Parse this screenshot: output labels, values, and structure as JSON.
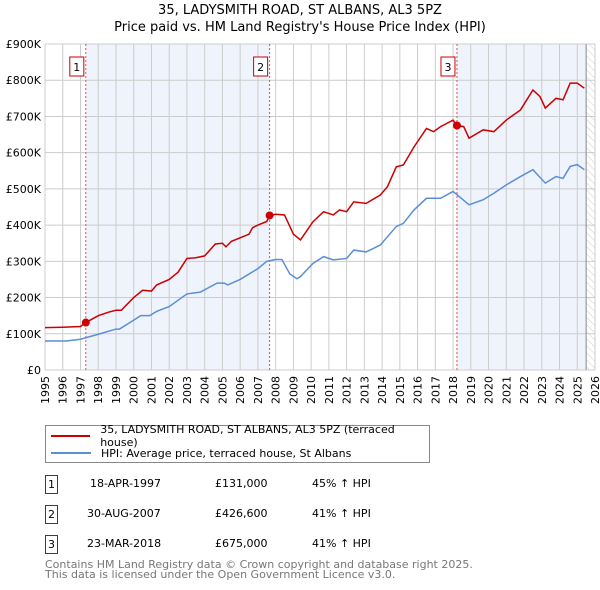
{
  "title_line1": "35, LADYSMITH ROAD, ST ALBANS, AL3 5PZ",
  "title_line2": "Price paid vs. HM Land Registry's House Price Index (HPI)",
  "colors": {
    "property": "#cc0000",
    "hpi": "#5b8fd4",
    "shade": "#eef3fc"
  },
  "chart_data": {
    "type": "line",
    "xlim": [
      1995,
      2026
    ],
    "ylim": [
      0,
      900000
    ],
    "x_ticks": [
      "1995",
      "1996",
      "1997",
      "1998",
      "1999",
      "2000",
      "2001",
      "2002",
      "2003",
      "2004",
      "2005",
      "2006",
      "2007",
      "2008",
      "2009",
      "2010",
      "2011",
      "2012",
      "2013",
      "2014",
      "2015",
      "2016",
      "2017",
      "2018",
      "2019",
      "2020",
      "2021",
      "2022",
      "2023",
      "2024",
      "2025",
      "2026"
    ],
    "y_ticks": [
      {
        "v": 0,
        "label": "£0"
      },
      {
        "v": 100000,
        "label": "£100K"
      },
      {
        "v": 200000,
        "label": "£200K"
      },
      {
        "v": 300000,
        "label": "£300K"
      },
      {
        "v": 400000,
        "label": "£400K"
      },
      {
        "v": 500000,
        "label": "£500K"
      },
      {
        "v": 600000,
        "label": "£600K"
      },
      {
        "v": 700000,
        "label": "£700K"
      },
      {
        "v": 800000,
        "label": "£800K"
      },
      {
        "v": 900000,
        "label": "£900K"
      }
    ],
    "grid": true,
    "data_end": 2025.5,
    "series": [
      {
        "name": "35, LADYSMITH ROAD, ST ALBANS, AL3 5PZ (terraced house)",
        "color": "#cc0000",
        "x": [
          1995,
          1996,
          1997,
          1997.3,
          1998,
          1998.6,
          1999,
          1999.3,
          2000,
          2000.5,
          2001,
          2001.3,
          2002,
          2002.5,
          2003,
          2003.5,
          2004,
          2004.6,
          2005,
          2005.2,
          2005.5,
          2006,
          2006.5,
          2006.7,
          2007,
          2007.5,
          2007.66,
          2008,
          2008.5,
          2009,
          2009.4,
          2010.1,
          2010.7,
          2011.25,
          2011.6,
          2012,
          2012.4,
          2013.1,
          2013.9,
          2014.3,
          2014.8,
          2015.2,
          2015.8,
          2016.5,
          2016.9,
          2017.3,
          2018,
          2018.2,
          2018.6,
          2018.9,
          2019.7,
          2020.3,
          2021,
          2021.8,
          2022.5,
          2022.9,
          2023.2,
          2023.8,
          2024.2,
          2024.6,
          2025,
          2025.4
        ],
        "y": [
          117000,
          118000,
          120000,
          131000,
          150000,
          160000,
          165000,
          165000,
          200000,
          220000,
          218000,
          235000,
          250000,
          270000,
          308000,
          310000,
          315000,
          348000,
          350000,
          340000,
          355000,
          365000,
          375000,
          393000,
          400000,
          410000,
          426600,
          430000,
          428000,
          375000,
          359000,
          409000,
          437000,
          428000,
          442000,
          437000,
          464000,
          460000,
          483000,
          506000,
          561000,
          566000,
          616000,
          667000,
          658000,
          672000,
          690000,
          675000,
          672000,
          640000,
          663000,
          658000,
          690000,
          718000,
          773000,
          755000,
          723000,
          750000,
          746000,
          792000,
          792000,
          778000
        ]
      },
      {
        "name": "HPI: Average price, terraced house, St Albans",
        "color": "#5b8fd4",
        "x": [
          1995,
          1996.2,
          1997,
          1998.1,
          1999,
          1999.2,
          2000.4,
          2000.9,
          2001.3,
          2002,
          2003,
          2003.75,
          2004.7,
          2005.1,
          2005.3,
          2006,
          2007,
          2007.5,
          2008,
          2008.35,
          2008.8,
          2009.2,
          2009.4,
          2010.1,
          2010.7,
          2011.25,
          2012,
          2012.4,
          2013.1,
          2013.9,
          2014.8,
          2015.2,
          2015.8,
          2016.5,
          2017.3,
          2018,
          2018.9,
          2019.7,
          2020.3,
          2021,
          2021.8,
          2022.5,
          2023.2,
          2023.8,
          2024.2,
          2024.6,
          2025,
          2025.4
        ],
        "y": [
          80000,
          80000,
          85000,
          100000,
          113000,
          113000,
          150000,
          150000,
          162000,
          175000,
          210000,
          215000,
          240000,
          240000,
          235000,
          250000,
          280000,
          300000,
          305000,
          305000,
          265000,
          252000,
          258000,
          294000,
          313000,
          304000,
          308000,
          331000,
          326000,
          345000,
          396000,
          405000,
          442000,
          474000,
          474000,
          493000,
          456000,
          470000,
          488000,
          511000,
          534000,
          553000,
          516000,
          534000,
          529000,
          562000,
          567000,
          553000
        ]
      }
    ],
    "sales": [
      {
        "label": "1",
        "x": 1997.3,
        "price": 131000,
        "date": "18-APR-1997",
        "price_text": "£131,000",
        "vs_hpi": "45% ↑ HPI"
      },
      {
        "label": "2",
        "x": 2007.66,
        "price": 426600,
        "date": "30-AUG-2007",
        "price_text": "£426,600",
        "vs_hpi": "41% ↑ HPI"
      },
      {
        "label": "3",
        "x": 2018.22,
        "price": 675000,
        "date": "23-MAR-2018",
        "price_text": "£675,000",
        "vs_hpi": "41% ↑ HPI"
      }
    ]
  },
  "legend": {
    "property": "35, LADYSMITH ROAD, ST ALBANS, AL3 5PZ (terraced house)",
    "hpi": "HPI: Average price, terraced house, St Albans"
  },
  "footer": {
    "line1": "Contains HM Land Registry data © Crown copyright and database right 2025.",
    "line2": "This data is licensed under the Open Government Licence v3.0."
  }
}
